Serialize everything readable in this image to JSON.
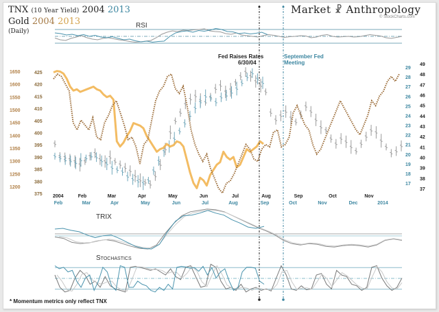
{
  "header": {
    "line1_prefix": "TNX",
    "line1_sub": "(10 Year Yield)",
    "line1_year_a": "2004",
    "line1_year_b": "2013",
    "line2_prefix": "Gold",
    "line2_year_a": "2004",
    "line2_year_b": "2013",
    "line3": "(Daily)",
    "brand_left": "Market",
    "brand_right": "Anthropology",
    "source": "© StockCharts.com",
    "footnote": "* Momentum metrics only reflect TNX"
  },
  "colors": {
    "tnx_2004": "#8a8a8a",
    "tnx_2013": "#4a93ad",
    "gold_2004": "#9a6a35",
    "gold_2013": "#f2b552",
    "event_2004": "#222222",
    "event_2013": "#3c86a0"
  },
  "annotations": {
    "fed_raises": "Fed Raises Rates",
    "fed_date": "6/30/04",
    "sept_fed": "September Fed",
    "sept_fed2": "Meeting"
  },
  "chart_data": [
    {
      "type": "line",
      "title": "TNX 2004 vs 2013 / Gold 2004 vs 2013 (Daily)",
      "axes": {
        "gold_2013_axis": {
          "label": "Gold 2013",
          "ticks": [
            "1650",
            "1600",
            "1550",
            "1500",
            "1450",
            "1400",
            "1350",
            "1300",
            "1250",
            "1200"
          ],
          "ylim": [
            1200,
            1650
          ]
        },
        "gold_2004_axis": {
          "label": "Gold 2004",
          "ticks": [
            "425",
            "420",
            "415",
            "410",
            "405",
            "400",
            "395",
            "390",
            "385",
            "380",
            "375"
          ],
          "ylim": [
            375,
            425
          ]
        },
        "tnx_2013_axis": {
          "label": "TNX 2013",
          "ticks": [
            "29",
            "28",
            "27",
            "26",
            "25",
            "24",
            "23",
            "22",
            "21",
            "20",
            "19",
            "18",
            "17"
          ],
          "ylim": [
            17,
            29
          ]
        },
        "tnx_2004_axis": {
          "label": "TNX 2004",
          "ticks": [
            "49",
            "48",
            "47",
            "46",
            "45",
            "44",
            "43",
            "42",
            "41",
            "40",
            "39",
            "38",
            "37"
          ],
          "ylim": [
            37,
            49
          ]
        }
      },
      "x_ticks_2004": [
        "2004",
        "Feb",
        "Mar",
        "Apr",
        "May",
        "Jun",
        "Jul",
        "Aug",
        "Sep",
        "Oct",
        "Nov"
      ],
      "x_ticks_2013": [
        "Feb",
        "Mar",
        "Apr",
        "May",
        "Jun",
        "Jul",
        "Aug",
        "Sep",
        "Oct",
        "Nov",
        "Dec",
        "2014"
      ],
      "series": [
        {
          "name": "Gold 2004 (dotted)",
          "axis": "gold_2004_axis",
          "values": [
            423,
            425,
            424,
            421,
            418,
            405,
            402,
            406,
            404,
            402,
            407,
            399,
            398,
            405,
            408,
            412,
            414,
            409,
            404,
            398,
            399,
            395,
            388,
            396,
            398,
            406,
            414,
            418,
            420,
            424,
            425,
            419,
            417,
            420,
            412,
            402,
            396,
            392,
            389,
            392,
            386,
            382,
            378,
            376,
            380,
            381,
            384,
            388,
            392,
            396,
            394,
            390,
            389,
            394,
            396,
            395,
            401,
            402,
            395,
            396,
            399,
            409,
            412,
            408,
            404,
            402,
            396,
            392,
            394,
            398,
            402,
            406,
            410,
            414,
            411,
            408,
            405,
            402,
            400,
            404,
            408,
            414,
            412,
            416,
            418,
            422,
            424,
            422,
            425
          ]
        },
        {
          "name": "Gold 2013 (thick)",
          "axis": "gold_2013_axis",
          "values": [
            1665,
            1670,
            1668,
            1660,
            1640,
            1610,
            1595,
            1600,
            1590,
            1595,
            1600,
            1605,
            1610,
            1600,
            1595,
            1580,
            1570,
            1575,
            1560,
            1400,
            1380,
            1395,
            1420,
            1440,
            1470,
            1465,
            1460,
            1450,
            1420,
            1400,
            1380,
            1360,
            1370,
            1375,
            1390,
            1380,
            1385,
            1400,
            1395,
            1380,
            1330,
            1280,
            1240,
            1220,
            1260,
            1250,
            1230,
            1270,
            1290,
            1310,
            1320,
            1360,
            1340,
            1330,
            1340,
            1300,
            1310,
            1340,
            1370,
            1360,
            1370,
            1380,
            1400,
            1390
          ]
        },
        {
          "name": "TNX 2004 (gray bars)",
          "axis": "tnx_2004_axis",
          "values": [
            41.5,
            40.3,
            40.2,
            40.0,
            39.8,
            39.5,
            39.8,
            40.3,
            40.6,
            40.0,
            39.8,
            40.2,
            39.8,
            39.5,
            39.2,
            38.9,
            38.4,
            38.0,
            37.8,
            37.6,
            38.4,
            39.5,
            41.0,
            42.6,
            43.7,
            44.5,
            45.3,
            45.8,
            46.1,
            45.7,
            45.5,
            46.0,
            46.8,
            47.1,
            46.5,
            46.7,
            47.4,
            48.0,
            48.4,
            48.0,
            47.5,
            47.1,
            46.5,
            44.5,
            43.8,
            44.2,
            44.6,
            44.0,
            43.6,
            44.3,
            45.1,
            44.6,
            43.8,
            43.1,
            42.8,
            42.0,
            41.5,
            42.0,
            41.7,
            41.2,
            40.8,
            41.5,
            42.2,
            42.8,
            42.6,
            41.8,
            41.2,
            40.6,
            40.8,
            41.3
          ]
        },
        {
          "name": "TNX 2013 (blue bars)",
          "axis": "tnx_2013_axis",
          "values": [
            20.0,
            19.8,
            19.6,
            19.5,
            19.3,
            19.6,
            19.8,
            20.0,
            19.9,
            19.5,
            19.2,
            18.8,
            18.6,
            18.4,
            17.9,
            17.6,
            17.4,
            17.2,
            17.5,
            18.5,
            19.5,
            20.5,
            21.0,
            21.8,
            22.6,
            23.4,
            24.2,
            25.0,
            25.6,
            26.2,
            26.0,
            25.6,
            26.1,
            26.3,
            26.6,
            27.0,
            27.6,
            28.2,
            28.6,
            28.0,
            27.6
          ]
        }
      ],
      "events": [
        {
          "label": "Fed Raises Rates 6/30/04",
          "x_2004": "Jul"
        },
        {
          "label": "September Fed Meeting",
          "x_2013": "Sep"
        }
      ]
    },
    {
      "type": "line",
      "title": "RSI",
      "ylim": [
        0,
        100
      ],
      "levels": [
        30,
        50,
        70
      ],
      "series": [
        {
          "name": "RSI TNX 2004",
          "values": [
            45,
            40,
            38,
            44,
            48,
            52,
            46,
            42,
            40,
            44,
            46,
            43,
            40,
            38,
            35,
            33,
            34,
            36,
            38,
            46,
            56,
            62,
            66,
            64,
            68,
            67,
            69,
            70,
            72,
            66,
            64,
            63,
            58,
            56,
            60,
            54,
            52,
            50,
            48,
            52,
            55,
            53,
            50,
            47,
            49,
            50,
            52,
            51,
            46,
            48,
            53,
            55,
            50,
            48,
            49,
            50,
            48,
            49,
            52,
            55,
            53,
            51,
            46,
            44,
            47,
            50
          ]
        },
        {
          "name": "RSI TNX 2013",
          "values": [
            60,
            58,
            54,
            56,
            52,
            55,
            50,
            53,
            48,
            46,
            49,
            44,
            40,
            42,
            37,
            34,
            36,
            33,
            35,
            36,
            50,
            60,
            64,
            66,
            62,
            67,
            65,
            68,
            73,
            70,
            64,
            63,
            58,
            60,
            57,
            59,
            62,
            55
          ]
        }
      ]
    },
    {
      "type": "line",
      "title": "TRIX",
      "series": [
        {
          "name": "TRIX TNX 2004",
          "values": [
            0.0,
            -0.2,
            -0.8,
            -1.0,
            -0.9,
            -0.6,
            -0.4,
            -0.6,
            -1.0,
            -1.4,
            -1.7,
            -1.8,
            -1.2,
            0.5,
            2.0,
            3.2,
            3.8,
            4.0,
            4.2,
            4.1,
            3.8,
            3.2,
            2.6,
            2.0,
            1.4,
            0.9,
            0.3,
            -0.5,
            -1.0,
            -1.2,
            -1.0,
            -1.1,
            -1.4,
            -1.5,
            -1.3,
            -1.2,
            -1.3,
            -1.5,
            -1.2,
            -0.5,
            -0.3,
            -0.5
          ]
        },
        {
          "name": "TRIX TNX 2013",
          "values": [
            1.2,
            1.3,
            1.0,
            0.8,
            0.3,
            -0.1,
            0.2,
            0.3,
            -0.2,
            -0.8,
            -1.4,
            -1.7,
            -1.8,
            -1.1,
            0.8,
            2.4,
            3.2,
            3.3,
            3.6,
            4.0,
            3.6,
            3.3,
            2.6,
            2.1,
            1.5,
            1.3,
            1.6
          ]
        }
      ]
    },
    {
      "type": "line",
      "title": "Stochastics",
      "ylim": [
        0,
        100
      ],
      "levels": [
        20,
        50,
        80
      ],
      "series": [
        {
          "name": "Stochastics TNX 2004",
          "values": [
            60,
            20,
            5,
            10,
            50,
            75,
            60,
            30,
            40,
            20,
            55,
            25,
            15,
            10,
            5,
            85,
            88,
            84,
            80,
            75,
            80,
            70,
            60,
            80,
            55,
            45,
            85,
            90,
            55,
            20,
            25,
            95,
            85,
            40,
            15,
            20,
            10,
            30,
            5,
            15,
            20,
            10,
            15,
            8,
            50,
            90,
            60,
            15,
            10,
            25,
            12,
            15,
            60,
            65,
            30,
            15,
            75,
            60,
            55,
            30,
            25,
            10,
            20,
            85,
            90,
            50,
            25,
            10,
            20,
            50
          ]
        },
        {
          "name": "Stochastics TNX 2013",
          "values": [
            90,
            80,
            85,
            70,
            75,
            40,
            20,
            50,
            60,
            10,
            40,
            85,
            70,
            25,
            10,
            90,
            85,
            20,
            20,
            40,
            30,
            25,
            10,
            5,
            20,
            10,
            30,
            15,
            85,
            88,
            86,
            82,
            84,
            72,
            88,
            60,
            84,
            50,
            70,
            80,
            40,
            10,
            20,
            70,
            85,
            85,
            82,
            40,
            30
          ]
        }
      ]
    }
  ]
}
